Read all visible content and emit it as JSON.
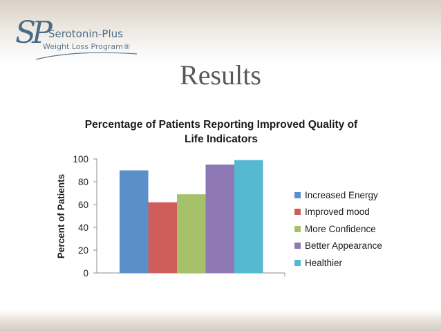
{
  "slide": {
    "brand_name": "Serotonin-Plus",
    "brand_sub": "Weight Loss Program®",
    "brand_mark": "SP",
    "title": "Results"
  },
  "chart_data": {
    "type": "bar",
    "title": "Percentage of Patients Reporting Improved Quality of Life Indicators",
    "ylabel": "Percent of Patients",
    "xlabel": "",
    "ylim": [
      0,
      100
    ],
    "yticks": [
      0,
      20,
      40,
      60,
      80,
      100
    ],
    "grid": false,
    "legend_position": "right",
    "series": [
      {
        "name": "Increased Energy",
        "value": 90,
        "color": "#5b8fc9"
      },
      {
        "name": "Improved mood",
        "value": 62,
        "color": "#cf5e5a"
      },
      {
        "name": "More Confidence",
        "value": 69,
        "color": "#a5c26b"
      },
      {
        "name": "Better Appearance",
        "value": 95,
        "color": "#8e79b5"
      },
      {
        "name": "Healthier",
        "value": 99,
        "color": "#56b9d2"
      }
    ]
  }
}
